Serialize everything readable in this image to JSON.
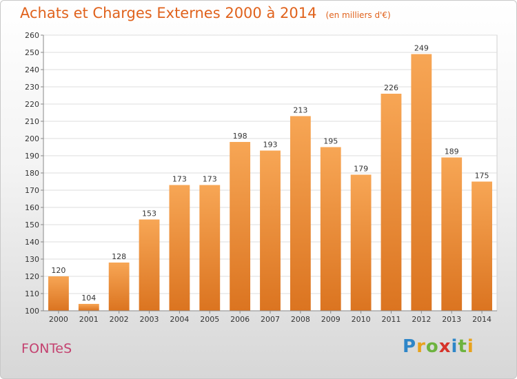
{
  "title": "Achats et Charges Externes 2000 à 2014",
  "subtitle": "(en milliers d'€)",
  "commune": "FONTeS",
  "brand": {
    "text": "Proxiti",
    "letters": [
      "P",
      "r",
      "o",
      "x",
      "i",
      "t",
      "i"
    ],
    "colors": [
      "#2e86c8",
      "#e8a21c",
      "#6db33f",
      "#d6332a",
      "#2e86c8",
      "#6db33f",
      "#e8a21c"
    ]
  },
  "colors": {
    "bar_top": "#f7a655",
    "bar_bottom": "#db7420",
    "title": "#e0621c",
    "commune": "#c4416f"
  },
  "chart_data": {
    "type": "bar",
    "title": "Achats et Charges Externes 2000 à 2014",
    "subtitle": "(en milliers d'€)",
    "xlabel": "",
    "ylabel": "",
    "categories": [
      "2000",
      "2001",
      "2002",
      "2003",
      "2004",
      "2005",
      "2006",
      "2007",
      "2008",
      "2009",
      "2010",
      "2011",
      "2012",
      "2013",
      "2014"
    ],
    "values": [
      120,
      104,
      128,
      153,
      173,
      173,
      198,
      193,
      213,
      195,
      179,
      226,
      249,
      189,
      175
    ],
    "ylim": [
      100,
      260
    ],
    "yticks": [
      100,
      110,
      120,
      130,
      140,
      150,
      160,
      170,
      180,
      190,
      200,
      210,
      220,
      230,
      240,
      250,
      260
    ],
    "grid": true,
    "legend": "none"
  }
}
